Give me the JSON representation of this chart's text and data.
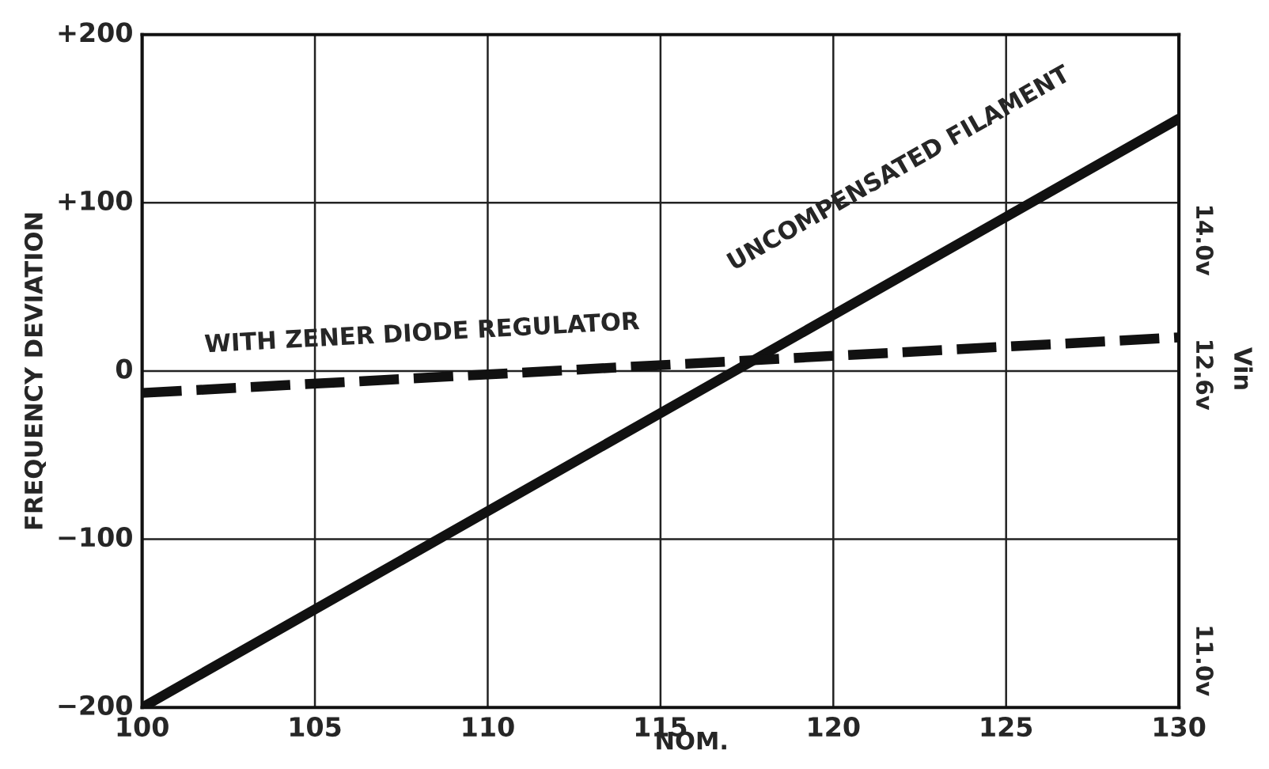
{
  "chart_data": {
    "type": "line",
    "ylabel": "FREQUENCY DEVIATION",
    "xlabel": "NOM.",
    "y2label": "Vin",
    "x": [
      100,
      130
    ],
    "series": [
      {
        "color": "#111111",
        "values": [
          -200,
          150
        ],
        "line_style": "solid"
      },
      {
        "color": "#111111",
        "values": [
          -13,
          20
        ],
        "line_style": "dashed"
      }
    ],
    "xlim": [
      100,
      130
    ],
    "xticks": [
      100,
      105,
      110,
      115,
      120,
      125,
      130
    ],
    "ylim": [
      -200,
      200
    ],
    "yticks": [
      {
        "value": -200,
        "label": "−200"
      },
      {
        "value": -100,
        "label": "−100"
      },
      {
        "value": 0,
        "label": "0"
      },
      {
        "value": 100,
        "label": "+100"
      },
      {
        "value": 200,
        "label": "+200"
      }
    ],
    "annotations": [
      "WITH ZENER DIODE REGULATOR",
      "UNCOMPENSATED FILAMENT",
      "14.0v",
      "12.6v",
      "11.0v"
    ],
    "grid": true,
    "legend": false,
    "marker": "none"
  }
}
